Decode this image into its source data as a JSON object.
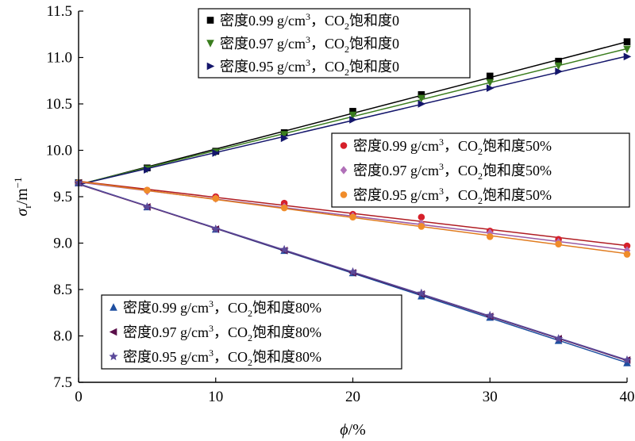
{
  "chart_data": {
    "type": "line",
    "x": [
      0,
      5,
      10,
      15,
      20,
      25,
      30,
      35,
      40
    ],
    "xlim": [
      0,
      40
    ],
    "ylim": [
      7.5,
      11.5
    ],
    "xticks": [
      0,
      10,
      20,
      30,
      40
    ],
    "yticks": [
      7.5,
      8.0,
      8.5,
      9.0,
      9.5,
      10.0,
      10.5,
      11.0,
      11.5
    ],
    "xlabel": {
      "main": "ϕ",
      "unit": "/%"
    },
    "ylabel": {
      "main": "σ",
      "sub": "r",
      "unit": "/m",
      "sup": "−1"
    },
    "grid": false,
    "series": [
      {
        "name": "密度0.99 g/cm³，CO₂饱和度0",
        "legend": {
          "pre": "密度0.99 g/cm",
          "sup": "3",
          "mid": "，CO",
          "sub": "2",
          "post": "饱和度0"
        },
        "marker": "square",
        "color": "#000000",
        "line_color": "#000000",
        "values": [
          9.65,
          9.81,
          9.99,
          10.19,
          10.42,
          10.6,
          10.8,
          10.96,
          11.17
        ]
      },
      {
        "name": "密度0.97 g/cm³，CO₂饱和度0",
        "legend": {
          "pre": "密度0.97 g/cm",
          "sup": "3",
          "mid": "，CO",
          "sub": "2",
          "post": "饱和度0"
        },
        "marker": "triangle-down",
        "color": "#3a7d1e",
        "line_color": "#3a7d1e",
        "values": [
          9.65,
          9.8,
          9.98,
          10.17,
          10.38,
          10.56,
          10.73,
          10.91,
          11.09
        ]
      },
      {
        "name": "密度0.95 g/cm³，CO₂饱和度0",
        "legend": {
          "pre": "密度0.95 g/cm",
          "sup": "3",
          "mid": "，CO",
          "sub": "2",
          "post": "饱和度0"
        },
        "marker": "triangle-right",
        "color": "#14166b",
        "line_color": "#14166b",
        "values": [
          9.65,
          9.79,
          9.97,
          10.13,
          10.33,
          10.5,
          10.67,
          10.85,
          11.01
        ]
      },
      {
        "name": "密度0.99 g/cm³，CO₂饱和度50%",
        "legend": {
          "pre": "密度0.99 g/cm",
          "sup": "3",
          "mid": "，CO",
          "sub": "2",
          "post": "饱和度50%"
        },
        "marker": "circle",
        "color": "#d6202a",
        "line_color": "#b01c22",
        "values": [
          9.65,
          9.57,
          9.5,
          9.43,
          9.31,
          9.28,
          9.13,
          9.04,
          8.97
        ]
      },
      {
        "name": "密度0.97 g/cm³，CO₂饱和度50%",
        "legend": {
          "pre": "密度0.97 g/cm",
          "sup": "3",
          "mid": "，CO",
          "sub": "2",
          "post": "饱和度50%"
        },
        "marker": "diamond",
        "color": "#b070b8",
        "line_color": "#9a5aa3",
        "values": [
          9.65,
          9.56,
          9.48,
          9.39,
          9.29,
          9.21,
          9.11,
          9.01,
          8.92
        ]
      },
      {
        "name": "密度0.95 g/cm³，CO₂饱和度50%",
        "legend": {
          "pre": "密度0.95 g/cm",
          "sup": "3",
          "mid": "，CO",
          "sub": "2",
          "post": "饱和度50%"
        },
        "marker": "circle",
        "color": "#f08c2a",
        "line_color": "#e07b1e",
        "values": [
          9.65,
          9.57,
          9.48,
          9.38,
          9.28,
          9.18,
          9.07,
          8.99,
          8.88
        ]
      },
      {
        "name": "密度0.99 g/cm³，CO₂饱和度80%",
        "legend": {
          "pre": "密度0.99 g/cm",
          "sup": "3",
          "mid": "，CO",
          "sub": "2",
          "post": "饱和度80%"
        },
        "marker": "triangle-up",
        "color": "#1e4fa0",
        "line_color": "#1e4fa0",
        "values": [
          9.65,
          9.39,
          9.15,
          8.92,
          8.68,
          8.43,
          8.2,
          7.95,
          7.71
        ]
      },
      {
        "name": "密度0.97 g/cm³，CO₂饱和度80%",
        "legend": {
          "pre": "密度0.97 g/cm",
          "sup": "3",
          "mid": "，CO",
          "sub": "2",
          "post": "饱和度80%"
        },
        "marker": "triangle-left",
        "color": "#5a0f4a",
        "line_color": "#5a0f4a",
        "values": [
          9.65,
          9.39,
          9.15,
          8.92,
          8.68,
          8.45,
          8.21,
          7.97,
          7.74
        ]
      },
      {
        "name": "密度0.95 g/cm³，CO₂饱和度80%",
        "legend": {
          "pre": "密度0.95 g/cm",
          "sup": "3",
          "mid": "，CO",
          "sub": "2",
          "post": "饱和度80%"
        },
        "marker": "star",
        "color": "#5b4a9a",
        "line_color": "#5b4a9a",
        "values": [
          9.65,
          9.39,
          9.15,
          8.93,
          8.69,
          8.46,
          8.22,
          7.97,
          7.74
        ]
      }
    ],
    "legends": [
      {
        "placement": "top-left",
        "series": [
          0,
          1,
          2
        ]
      },
      {
        "placement": "center-right",
        "series": [
          3,
          4,
          5
        ]
      },
      {
        "placement": "bottom-left",
        "series": [
          6,
          7,
          8
        ]
      }
    ]
  }
}
